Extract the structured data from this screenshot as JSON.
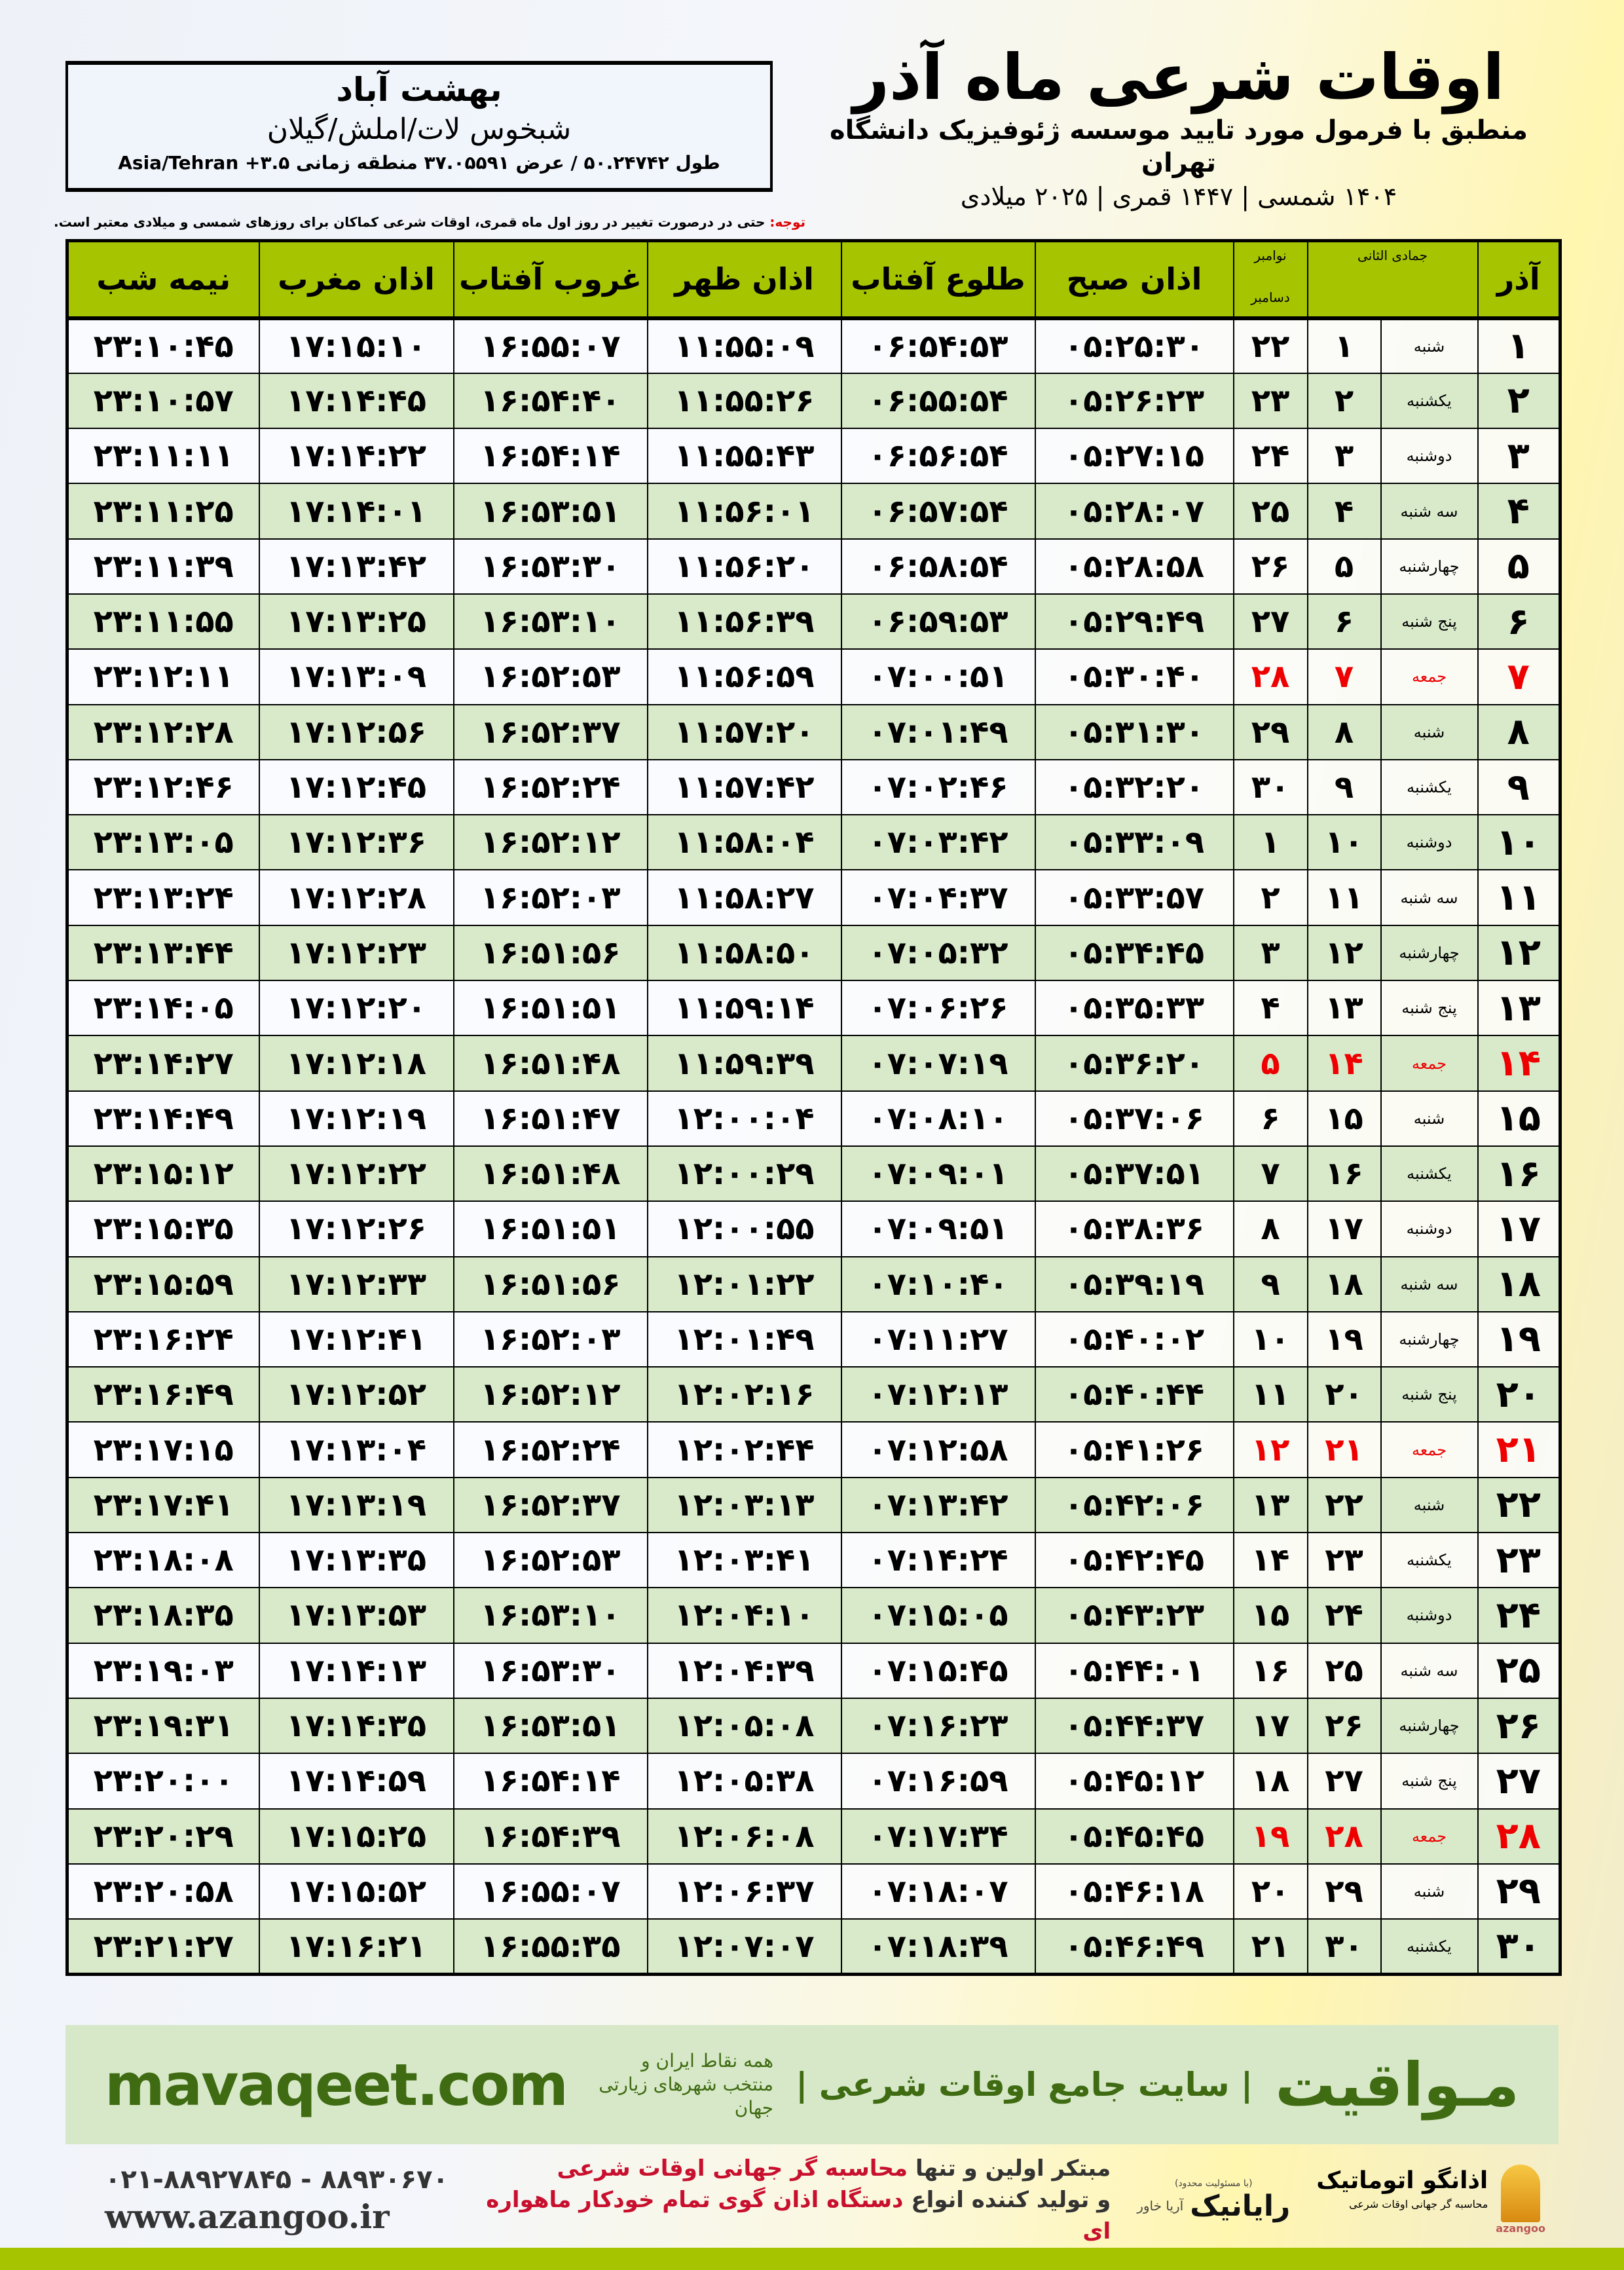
{
  "location": {
    "city": "بهشت آباد",
    "region": "شبخوس لات/املش/گیلان",
    "coords": "طول ۵۰.۲۴۷۴۲ / عرض ۳۷.۰۵۵۹۱ منطقه زمانی ۳.۵+ Asia/Tehran"
  },
  "header": {
    "title": "اوقات شرعی ماه آذر",
    "subtitle": "منطبق با فرمول مورد تایید موسسه ژئوفیزیک دانشگاه تهران",
    "years": "۱۴۰۴ شمسی | ۱۴۴۷ قمری | ۲۰۲۵ میلادی"
  },
  "note": {
    "label": "توجه:",
    "text": " حتی در درصورت تغییر در روز اول ماه قمری، اوقات شرعی کماکان برای روزهای شمسی و میلادی معتبر است."
  },
  "columns": {
    "azar": "آذر",
    "hijri": "جمادی الثانی",
    "gregorian_top": "نوامبر",
    "gregorian_bottom": "دسامبر",
    "sobh": "اذان صبح",
    "tolu": "طلوع آفتاب",
    "zohr": "اذان ظهر",
    "ghorub": "غروب آفتاب",
    "maghrib": "اذان مغرب",
    "nimeshab": "نیمه شب"
  },
  "colors": {
    "header_green": "#a6c400",
    "row_green": "#d9eacb",
    "holiday_red": "#e00000",
    "brand_green": "#3f6b12"
  },
  "rows": [
    [
      "۱",
      "شنبه",
      "۱",
      "۲۲",
      "۰۵:۲۵:۳۰",
      "۰۶:۵۴:۵۳",
      "۱۱:۵۵:۰۹",
      "۱۶:۵۵:۰۷",
      "۱۷:۱۵:۱۰",
      "۲۳:۱۰:۴۵",
      false
    ],
    [
      "۲",
      "یکشنبه",
      "۲",
      "۲۳",
      "۰۵:۲۶:۲۳",
      "۰۶:۵۵:۵۴",
      "۱۱:۵۵:۲۶",
      "۱۶:۵۴:۴۰",
      "۱۷:۱۴:۴۵",
      "۲۳:۱۰:۵۷",
      false
    ],
    [
      "۳",
      "دوشنبه",
      "۳",
      "۲۴",
      "۰۵:۲۷:۱۵",
      "۰۶:۵۶:۵۴",
      "۱۱:۵۵:۴۳",
      "۱۶:۵۴:۱۴",
      "۱۷:۱۴:۲۲",
      "۲۳:۱۱:۱۱",
      false
    ],
    [
      "۴",
      "سه شنبه",
      "۴",
      "۲۵",
      "۰۵:۲۸:۰۷",
      "۰۶:۵۷:۵۴",
      "۱۱:۵۶:۰۱",
      "۱۶:۵۳:۵۱",
      "۱۷:۱۴:۰۱",
      "۲۳:۱۱:۲۵",
      false
    ],
    [
      "۵",
      "چهارشنبه",
      "۵",
      "۲۶",
      "۰۵:۲۸:۵۸",
      "۰۶:۵۸:۵۴",
      "۱۱:۵۶:۲۰",
      "۱۶:۵۳:۳۰",
      "۱۷:۱۳:۴۲",
      "۲۳:۱۱:۳۹",
      false
    ],
    [
      "۶",
      "پنج شنبه",
      "۶",
      "۲۷",
      "۰۵:۲۹:۴۹",
      "۰۶:۵۹:۵۳",
      "۱۱:۵۶:۳۹",
      "۱۶:۵۳:۱۰",
      "۱۷:۱۳:۲۵",
      "۲۳:۱۱:۵۵",
      false
    ],
    [
      "۷",
      "جمعه",
      "۷",
      "۲۸",
      "۰۵:۳۰:۴۰",
      "۰۷:۰۰:۵۱",
      "۱۱:۵۶:۵۹",
      "۱۶:۵۲:۵۳",
      "۱۷:۱۳:۰۹",
      "۲۳:۱۲:۱۱",
      true
    ],
    [
      "۸",
      "شنبه",
      "۸",
      "۲۹",
      "۰۵:۳۱:۳۰",
      "۰۷:۰۱:۴۹",
      "۱۱:۵۷:۲۰",
      "۱۶:۵۲:۳۷",
      "۱۷:۱۲:۵۶",
      "۲۳:۱۲:۲۸",
      false
    ],
    [
      "۹",
      "یکشنبه",
      "۹",
      "۳۰",
      "۰۵:۳۲:۲۰",
      "۰۷:۰۲:۴۶",
      "۱۱:۵۷:۴۲",
      "۱۶:۵۲:۲۴",
      "۱۷:۱۲:۴۵",
      "۲۳:۱۲:۴۶",
      false
    ],
    [
      "۱۰",
      "دوشنبه",
      "۱۰",
      "۱",
      "۰۵:۳۳:۰۹",
      "۰۷:۰۳:۴۲",
      "۱۱:۵۸:۰۴",
      "۱۶:۵۲:۱۲",
      "۱۷:۱۲:۳۶",
      "۲۳:۱۳:۰۵",
      false
    ],
    [
      "۱۱",
      "سه شنبه",
      "۱۱",
      "۲",
      "۰۵:۳۳:۵۷",
      "۰۷:۰۴:۳۷",
      "۱۱:۵۸:۲۷",
      "۱۶:۵۲:۰۳",
      "۱۷:۱۲:۲۸",
      "۲۳:۱۳:۲۴",
      false
    ],
    [
      "۱۲",
      "چهارشنبه",
      "۱۲",
      "۳",
      "۰۵:۳۴:۴۵",
      "۰۷:۰۵:۳۲",
      "۱۱:۵۸:۵۰",
      "۱۶:۵۱:۵۶",
      "۱۷:۱۲:۲۳",
      "۲۳:۱۳:۴۴",
      false
    ],
    [
      "۱۳",
      "پنج شنبه",
      "۱۳",
      "۴",
      "۰۵:۳۵:۳۳",
      "۰۷:۰۶:۲۶",
      "۱۱:۵۹:۱۴",
      "۱۶:۵۱:۵۱",
      "۱۷:۱۲:۲۰",
      "۲۳:۱۴:۰۵",
      false
    ],
    [
      "۱۴",
      "جمعه",
      "۱۴",
      "۵",
      "۰۵:۳۶:۲۰",
      "۰۷:۰۷:۱۹",
      "۱۱:۵۹:۳۹",
      "۱۶:۵۱:۴۸",
      "۱۷:۱۲:۱۸",
      "۲۳:۱۴:۲۷",
      true
    ],
    [
      "۱۵",
      "شنبه",
      "۱۵",
      "۶",
      "۰۵:۳۷:۰۶",
      "۰۷:۰۸:۱۰",
      "۱۲:۰۰:۰۴",
      "۱۶:۵۱:۴۷",
      "۱۷:۱۲:۱۹",
      "۲۳:۱۴:۴۹",
      false
    ],
    [
      "۱۶",
      "یکشنبه",
      "۱۶",
      "۷",
      "۰۵:۳۷:۵۱",
      "۰۷:۰۹:۰۱",
      "۱۲:۰۰:۲۹",
      "۱۶:۵۱:۴۸",
      "۱۷:۱۲:۲۲",
      "۲۳:۱۵:۱۲",
      false
    ],
    [
      "۱۷",
      "دوشنبه",
      "۱۷",
      "۸",
      "۰۵:۳۸:۳۶",
      "۰۷:۰۹:۵۱",
      "۱۲:۰۰:۵۵",
      "۱۶:۵۱:۵۱",
      "۱۷:۱۲:۲۶",
      "۲۳:۱۵:۳۵",
      false
    ],
    [
      "۱۸",
      "سه شنبه",
      "۱۸",
      "۹",
      "۰۵:۳۹:۱۹",
      "۰۷:۱۰:۴۰",
      "۱۲:۰۱:۲۲",
      "۱۶:۵۱:۵۶",
      "۱۷:۱۲:۳۳",
      "۲۳:۱۵:۵۹",
      false
    ],
    [
      "۱۹",
      "چهارشنبه",
      "۱۹",
      "۱۰",
      "۰۵:۴۰:۰۲",
      "۰۷:۱۱:۲۷",
      "۱۲:۰۱:۴۹",
      "۱۶:۵۲:۰۳",
      "۱۷:۱۲:۴۱",
      "۲۳:۱۶:۲۴",
      false
    ],
    [
      "۲۰",
      "پنج شنبه",
      "۲۰",
      "۱۱",
      "۰۵:۴۰:۴۴",
      "۰۷:۱۲:۱۳",
      "۱۲:۰۲:۱۶",
      "۱۶:۵۲:۱۲",
      "۱۷:۱۲:۵۲",
      "۲۳:۱۶:۴۹",
      false
    ],
    [
      "۲۱",
      "جمعه",
      "۲۱",
      "۱۲",
      "۰۵:۴۱:۲۶",
      "۰۷:۱۲:۵۸",
      "۱۲:۰۲:۴۴",
      "۱۶:۵۲:۲۴",
      "۱۷:۱۳:۰۴",
      "۲۳:۱۷:۱۵",
      true
    ],
    [
      "۲۲",
      "شنبه",
      "۲۲",
      "۱۳",
      "۰۵:۴۲:۰۶",
      "۰۷:۱۳:۴۲",
      "۱۲:۰۳:۱۳",
      "۱۶:۵۲:۳۷",
      "۱۷:۱۳:۱۹",
      "۲۳:۱۷:۴۱",
      false
    ],
    [
      "۲۳",
      "یکشنبه",
      "۲۳",
      "۱۴",
      "۰۵:۴۲:۴۵",
      "۰۷:۱۴:۲۴",
      "۱۲:۰۳:۴۱",
      "۱۶:۵۲:۵۳",
      "۱۷:۱۳:۳۵",
      "۲۳:۱۸:۰۸",
      false
    ],
    [
      "۲۴",
      "دوشنبه",
      "۲۴",
      "۱۵",
      "۰۵:۴۳:۲۳",
      "۰۷:۱۵:۰۵",
      "۱۲:۰۴:۱۰",
      "۱۶:۵۳:۱۰",
      "۱۷:۱۳:۵۳",
      "۲۳:۱۸:۳۵",
      false
    ],
    [
      "۲۵",
      "سه شنبه",
      "۲۵",
      "۱۶",
      "۰۵:۴۴:۰۱",
      "۰۷:۱۵:۴۵",
      "۱۲:۰۴:۳۹",
      "۱۶:۵۳:۳۰",
      "۱۷:۱۴:۱۳",
      "۲۳:۱۹:۰۳",
      false
    ],
    [
      "۲۶",
      "چهارشنبه",
      "۲۶",
      "۱۷",
      "۰۵:۴۴:۳۷",
      "۰۷:۱۶:۲۳",
      "۱۲:۰۵:۰۸",
      "۱۶:۵۳:۵۱",
      "۱۷:۱۴:۳۵",
      "۲۳:۱۹:۳۱",
      false
    ],
    [
      "۲۷",
      "پنج شنبه",
      "۲۷",
      "۱۸",
      "۰۵:۴۵:۱۲",
      "۰۷:۱۶:۵۹",
      "۱۲:۰۵:۳۸",
      "۱۶:۵۴:۱۴",
      "۱۷:۱۴:۵۹",
      "۲۳:۲۰:۰۰",
      false
    ],
    [
      "۲۸",
      "جمعه",
      "۲۸",
      "۱۹",
      "۰۵:۴۵:۴۵",
      "۰۷:۱۷:۳۴",
      "۱۲:۰۶:۰۸",
      "۱۶:۵۴:۳۹",
      "۱۷:۱۵:۲۵",
      "۲۳:۲۰:۲۹",
      true
    ],
    [
      "۲۹",
      "شنبه",
      "۲۹",
      "۲۰",
      "۰۵:۴۶:۱۸",
      "۰۷:۱۸:۰۷",
      "۱۲:۰۶:۳۷",
      "۱۶:۵۵:۰۷",
      "۱۷:۱۵:۵۲",
      "۲۳:۲۰:۵۸",
      false
    ],
    [
      "۳۰",
      "یکشنبه",
      "۳۰",
      "۲۱",
      "۰۵:۴۶:۴۹",
      "۰۷:۱۸:۳۹",
      "۱۲:۰۷:۰۷",
      "۱۶:۵۵:۳۵",
      "۱۷:۱۶:۲۱",
      "۲۳:۲۱:۲۷",
      false
    ]
  ],
  "footer": {
    "brand": "مـواقیت",
    "tagline": "| سایت جامع اوقات شرعی |",
    "tagline2": "همه نقاط ایران و منتخب شهرهای زیارتی جهان",
    "site": "mavaqeet.com",
    "phone": "۰۲۱-۸۸۹۲۷۸۴۵ - ۸۸۹۳۰۶۷۰",
    "web": "www.azangoo.ir",
    "promo1a": "مبتکر اولین و تنها ",
    "promo1b": "محاسبه گر جهانی اوقات شرعی",
    "promo2a": "و تولید کننده انواع ",
    "promo2b": "دستگاه اذان گوی تمام خودکار ماهواره ای",
    "logo_rayanik_sub": "(با مسئولیت محدود)",
    "logo_rayanik": "رایانیک",
    "logo_rayanik_side": "آریا خاور",
    "logo_azangoo": "اذانگو اتوماتیک",
    "logo_azangoo_sub": "محاسبه گر جهانی اوقات شرعی",
    "logo_azangoo_en": "azangoo"
  }
}
